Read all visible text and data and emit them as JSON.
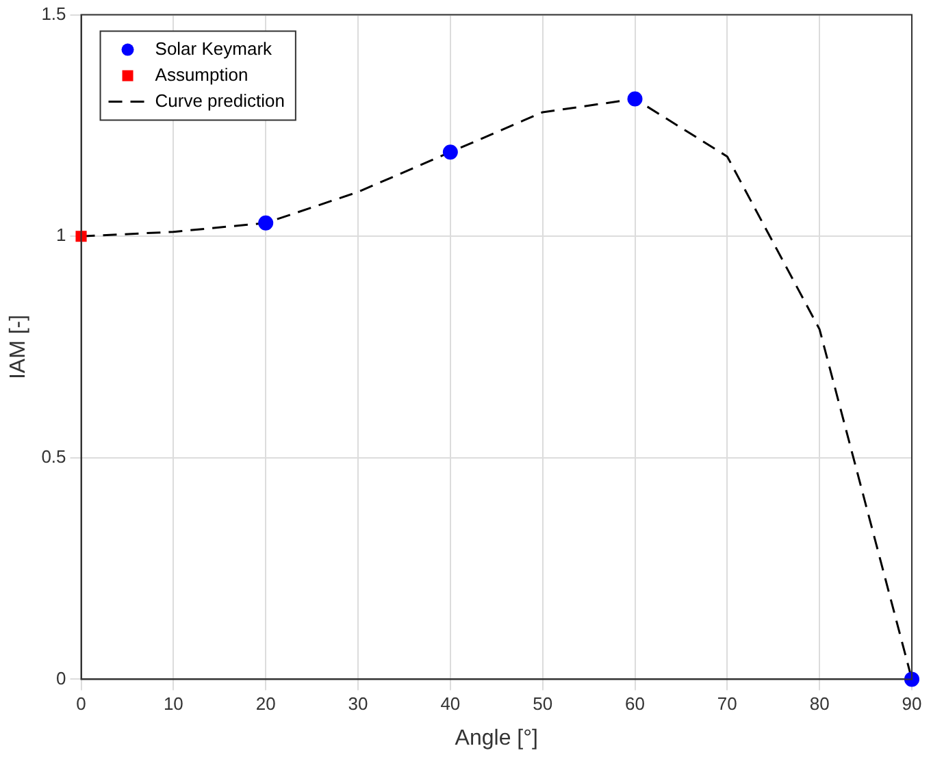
{
  "chart_data": {
    "type": "line",
    "xlabel": "Angle [°]",
    "ylabel": "IAM [-]",
    "xlim": [
      0,
      90
    ],
    "xticks": [
      0,
      10,
      20,
      30,
      40,
      50,
      60,
      70,
      80,
      90
    ],
    "ylim": [
      0,
      1.5
    ],
    "yticks": [
      0,
      0.5,
      1,
      1.5
    ],
    "grid": true,
    "legend": "top left",
    "series": [
      {
        "name": "Solar Keymark",
        "type": "scatter",
        "color": "#0000ff",
        "marker": "circle",
        "x": [
          20,
          40,
          60,
          90
        ],
        "values": [
          1.03,
          1.19,
          1.31,
          0
        ]
      },
      {
        "name": "Assumption",
        "type": "scatter",
        "color": "#ff0000",
        "marker": "square",
        "x": [
          0
        ],
        "values": [
          1
        ]
      },
      {
        "name": "Curve prediction",
        "color": "#000000",
        "marker": "none",
        "line_style": "dashed",
        "x": [
          0,
          10,
          20,
          30,
          40,
          50,
          60,
          70,
          80,
          90
        ],
        "values": [
          1,
          1.01,
          1.03,
          1.1,
          1.19,
          1.28,
          1.31,
          1.18,
          0.79,
          0
        ]
      }
    ]
  }
}
